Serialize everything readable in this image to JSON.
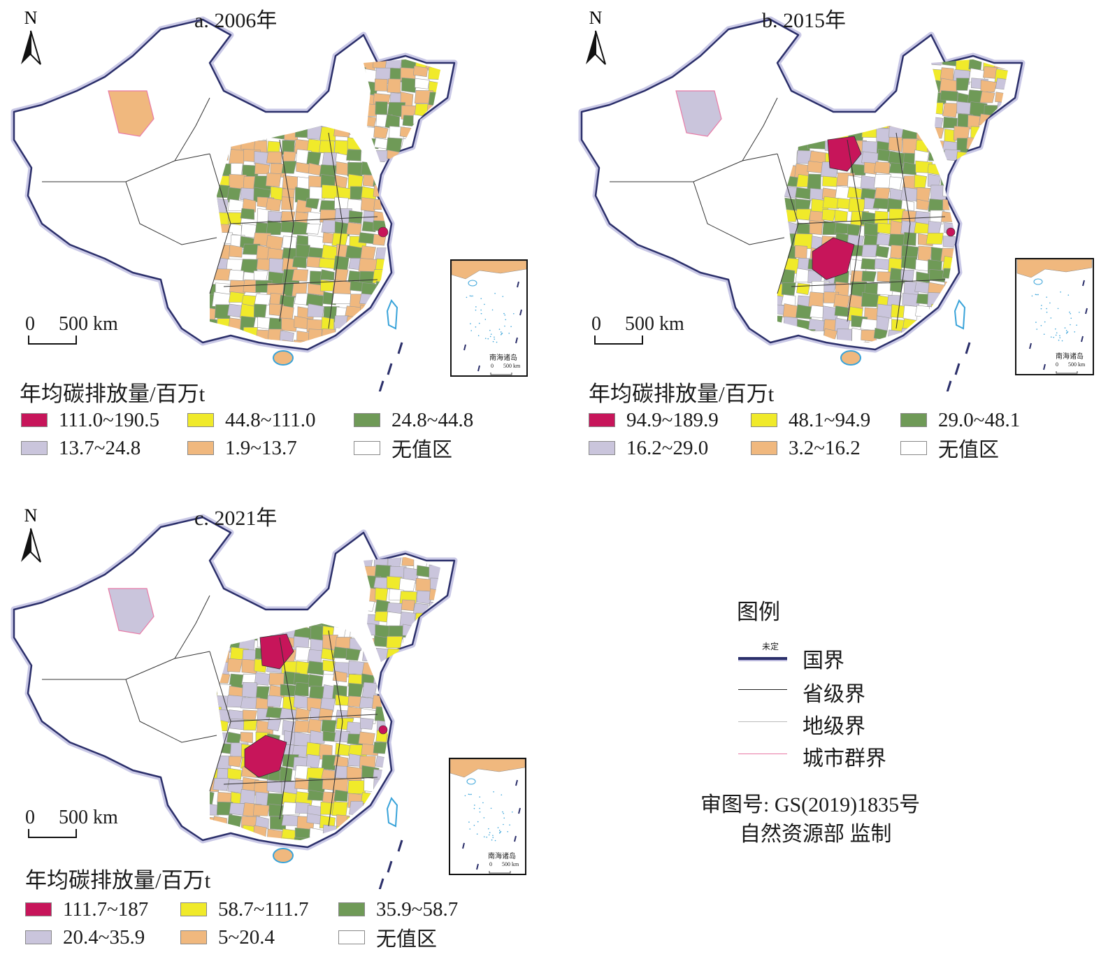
{
  "panels": [
    {
      "title": "a. 2006年",
      "north": "N",
      "scale_zero": "0",
      "scale_label": "500 km",
      "legend_title": "年均碳排放量/百万t",
      "classes": [
        {
          "label": "111.0~190.5",
          "color": "#c7155a"
        },
        {
          "label": "44.8~111.0",
          "color": "#f0ea2a"
        },
        {
          "label": "24.8~44.8",
          "color": "#6f9a57"
        },
        {
          "label": "13.7~24.8",
          "color": "#cac5dc"
        },
        {
          "label": "1.9~13.7",
          "color": "#f0b87e"
        },
        {
          "label": "无值区",
          "color": "#ffffff"
        }
      ],
      "inset_label": "南海诸岛",
      "inset_scale_zero": "0",
      "inset_scale_label": "500 km"
    },
    {
      "title": "b. 2015年",
      "north": "N",
      "scale_zero": "0",
      "scale_label": "500 km",
      "legend_title": "年均碳排放量/百万t",
      "classes": [
        {
          "label": "94.9~189.9",
          "color": "#c7155a"
        },
        {
          "label": "48.1~94.9",
          "color": "#f0ea2a"
        },
        {
          "label": "29.0~48.1",
          "color": "#6f9a57"
        },
        {
          "label": "16.2~29.0",
          "color": "#cac5dc"
        },
        {
          "label": "3.2~16.2",
          "color": "#f0b87e"
        },
        {
          "label": "无值区",
          "color": "#ffffff"
        }
      ],
      "inset_label": "南海诸岛",
      "inset_scale_zero": "0",
      "inset_scale_label": "500 km"
    },
    {
      "title": "c. 2021年",
      "north": "N",
      "scale_zero": "0",
      "scale_label": "500 km",
      "legend_title": "年均碳排放量/百万t",
      "classes": [
        {
          "label": "111.7~187",
          "color": "#c7155a"
        },
        {
          "label": "58.7~111.7",
          "color": "#f0ea2a"
        },
        {
          "label": "35.9~58.7",
          "color": "#6f9a57"
        },
        {
          "label": "20.4~35.9",
          "color": "#cac5dc"
        },
        {
          "label": "5~20.4",
          "color": "#f0b87e"
        },
        {
          "label": "无值区",
          "color": "#ffffff"
        }
      ],
      "inset_label": "南海诸岛",
      "inset_scale_zero": "0",
      "inset_scale_label": "500 km"
    }
  ],
  "legend": {
    "title": "图例",
    "items": [
      {
        "label": "国界",
        "color": "#2b2f6a",
        "note": "未定"
      },
      {
        "label": "省级界",
        "color": "#222222"
      },
      {
        "label": "地级界",
        "color": "#bbbbbb"
      },
      {
        "label": "城市群界",
        "color": "#e87aa6"
      }
    ]
  },
  "approval": {
    "line1": "审图号: GS(2019)1835号",
    "line2": "自然资源部 监制"
  }
}
